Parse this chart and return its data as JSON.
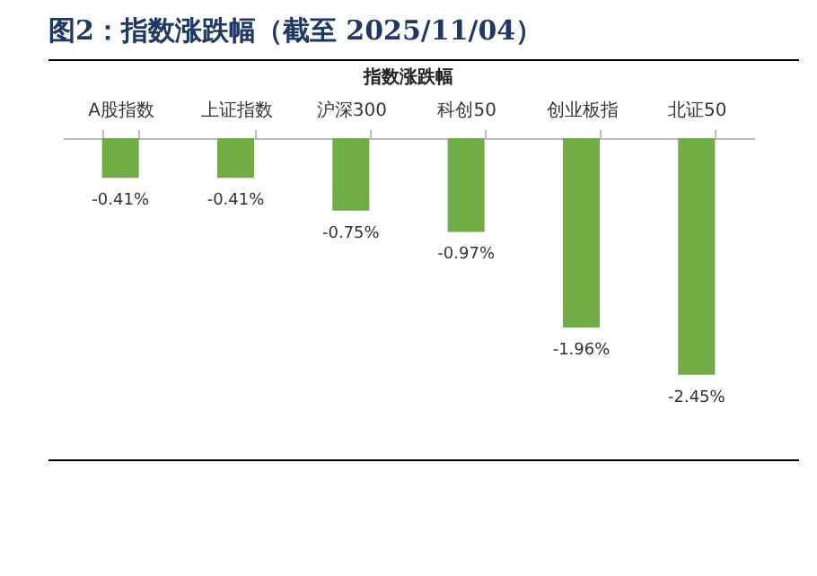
{
  "chart_data": {
    "type": "bar",
    "title": "图2：指数涨跌幅（截至 2025/11/04）",
    "subtitle": "指数涨跌幅",
    "categories": [
      "A股指数",
      "上证指数",
      "沪深300",
      "科创50",
      "创业板指",
      "北证50"
    ],
    "values": [
      -0.41,
      -0.41,
      -0.75,
      -0.97,
      -1.96,
      -2.45
    ],
    "value_labels": [
      "-0.41%",
      "-0.41%",
      "-0.75%",
      "-0.97%",
      "-1.96%",
      "-2.45%"
    ],
    "color": "#70ad47",
    "grid": false
  }
}
